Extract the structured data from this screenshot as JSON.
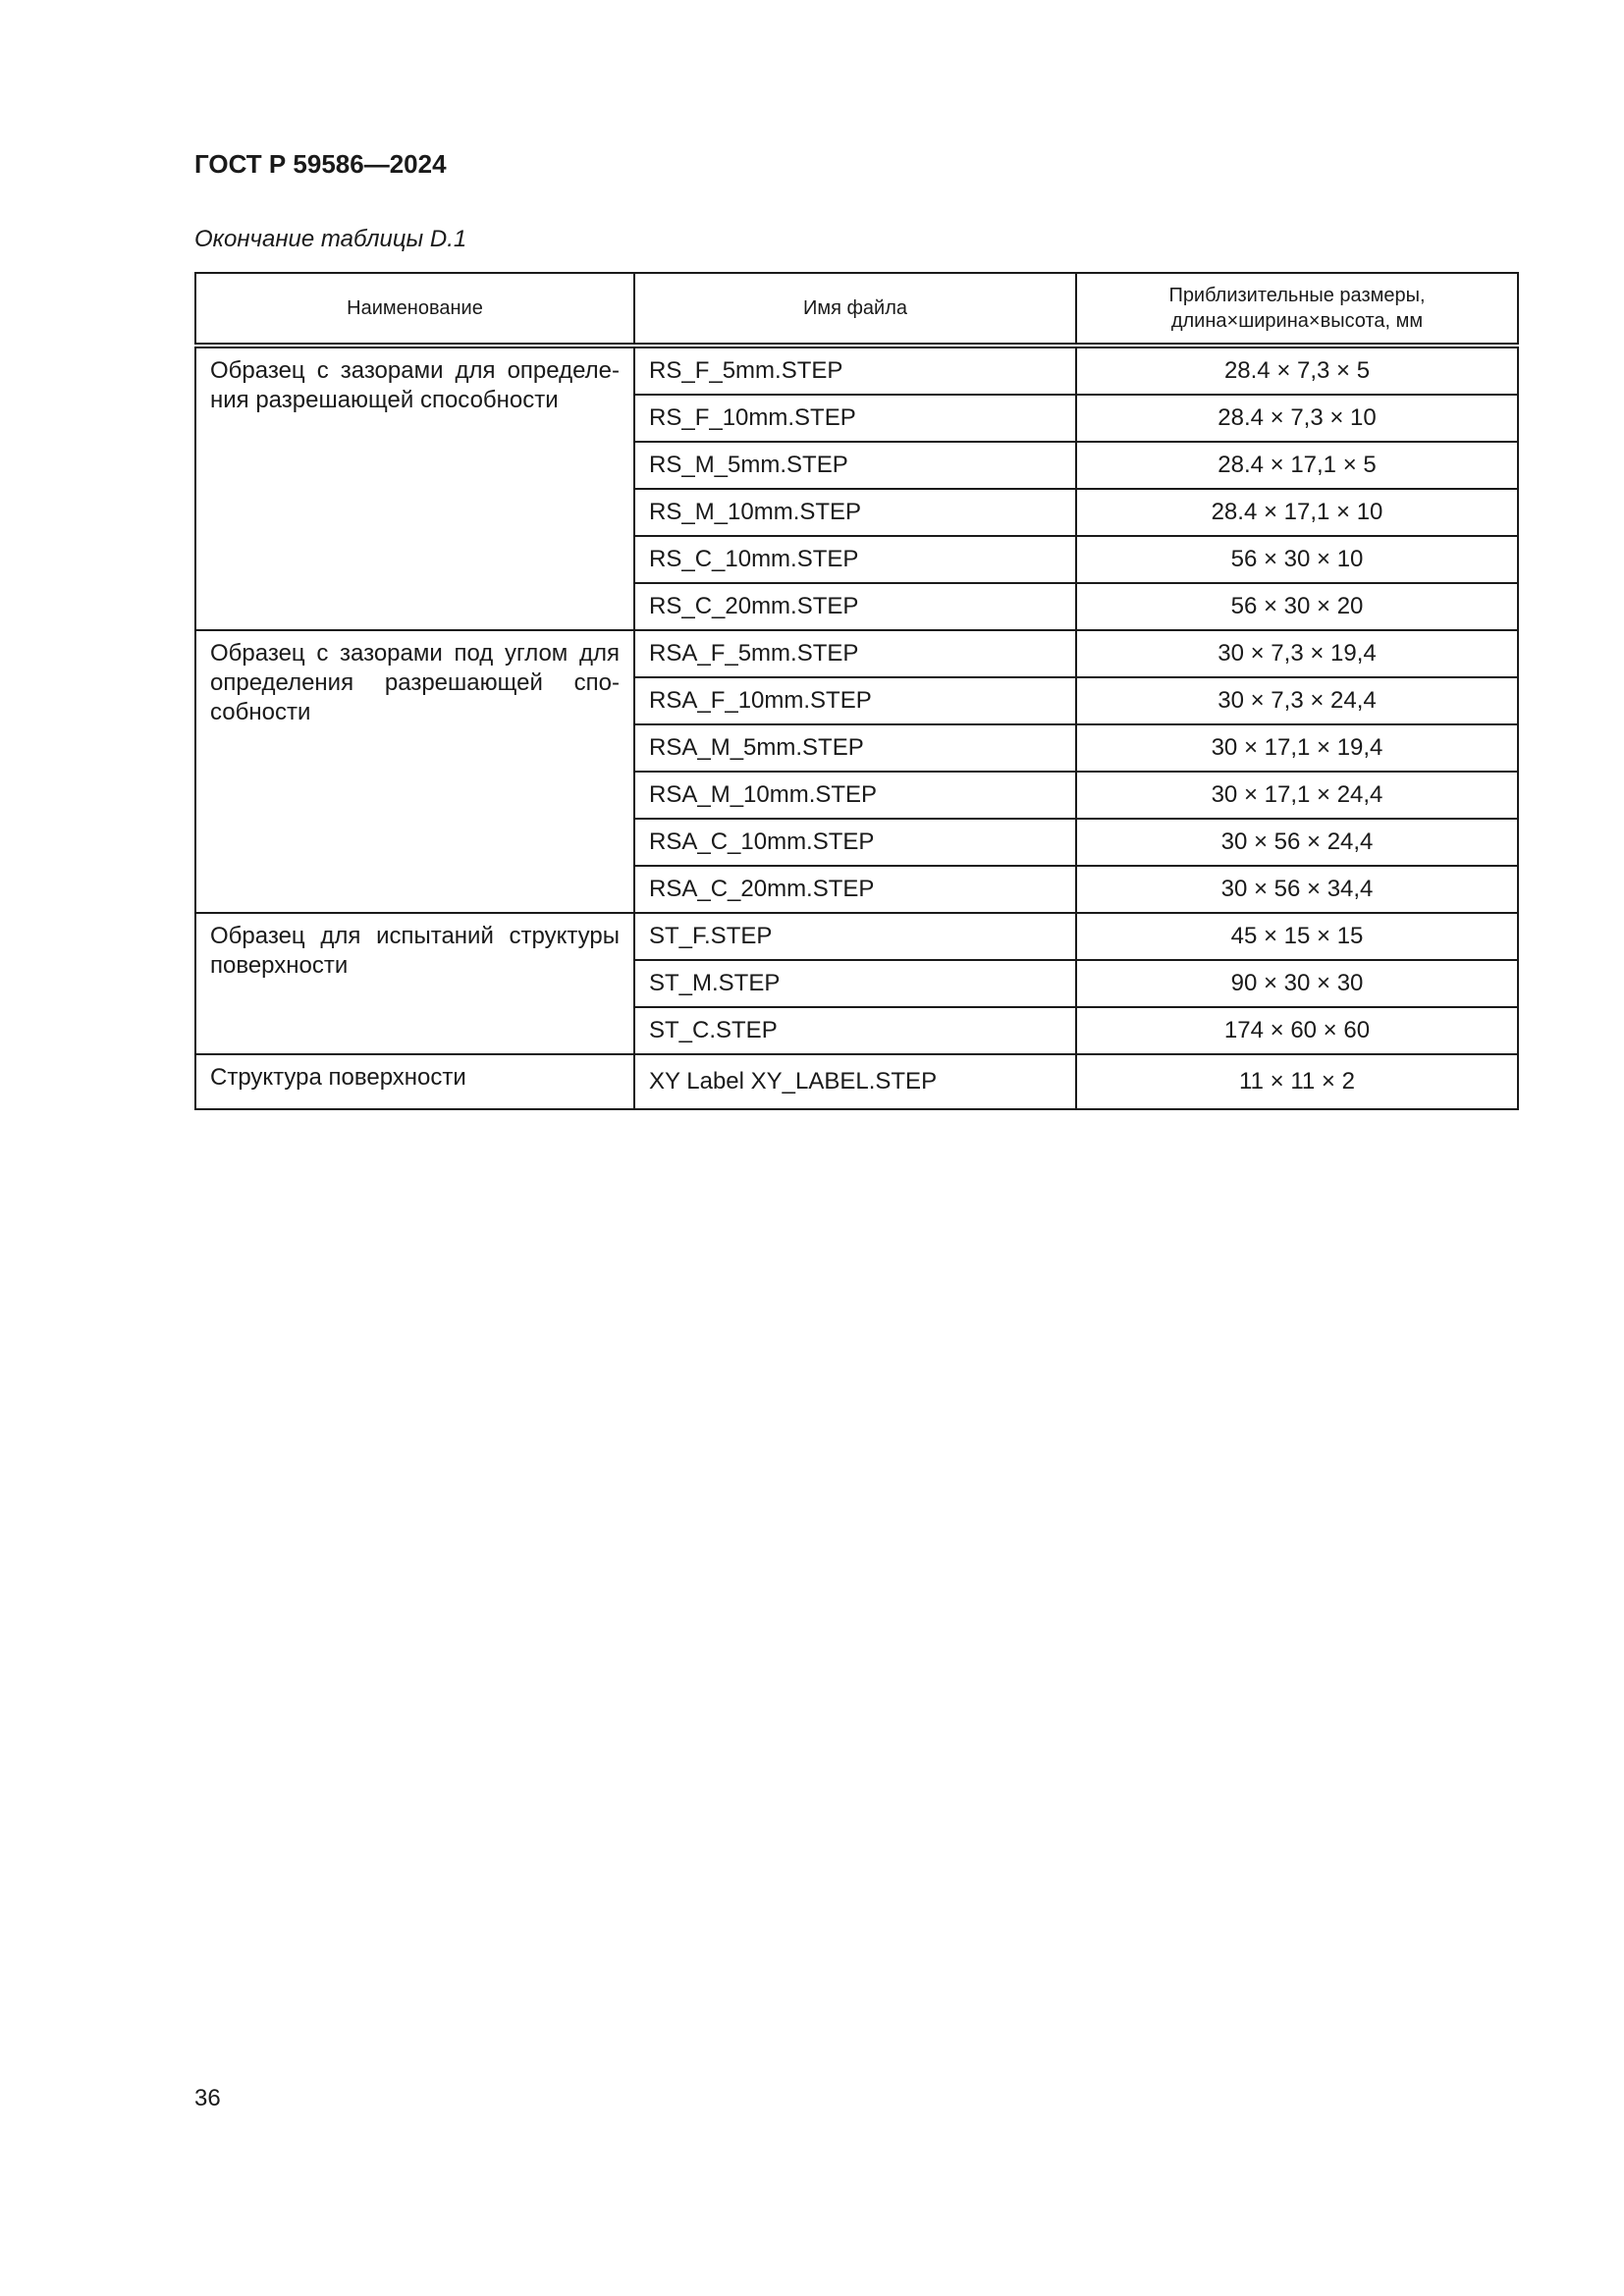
{
  "header": {
    "doc_title": "ГОСТ Р 59586—2024"
  },
  "caption": "Окончание таблицы D.1",
  "table": {
    "columns": [
      "Наименование",
      "Имя файла",
      "Приблизительные размеры,",
      "длина×ширина×высота, мм"
    ],
    "groups": [
      {
        "name": "Образец с зазорами для определе-ния разрешающей способности",
        "rows": [
          {
            "file": "RS_F_5mm.STEP",
            "size": "28.4 × 7,3 × 5"
          },
          {
            "file": "RS_F_10mm.STEP",
            "size": "28.4 × 7,3 × 10"
          },
          {
            "file": "RS_M_5mm.STEP",
            "size": "28.4 × 17,1 × 5"
          },
          {
            "file": "RS_M_10mm.STEP",
            "size": "28.4 × 17,1 × 10"
          },
          {
            "file": "RS_C_10mm.STEP",
            "size": "56 × 30 × 10"
          },
          {
            "file": "RS_C_20mm.STEP",
            "size": "56 × 30 × 20"
          }
        ]
      },
      {
        "name": "Образец с зазорами под углом для определения разрешающей спо-собности",
        "rows": [
          {
            "file": "RSA_F_5mm.STEP",
            "size": "30 × 7,3 × 19,4"
          },
          {
            "file": "RSA_F_10mm.STEP",
            "size": "30 × 7,3 × 24,4"
          },
          {
            "file": "RSA_M_5mm.STEP",
            "size": "30 × 17,1 × 19,4"
          },
          {
            "file": "RSA_M_10mm.STEP",
            "size": "30 × 17,1 × 24,4"
          },
          {
            "file": "RSA_C_10mm.STEP",
            "size": "30 × 56 × 24,4"
          },
          {
            "file": "RSA_C_20mm.STEP",
            "size": "30 × 56 × 34,4"
          }
        ]
      },
      {
        "name": "Образец для испытаний структуры поверхности",
        "rows": [
          {
            "file": "ST_F.STEP",
            "size": "45 × 15 × 15"
          },
          {
            "file": "ST_M.STEP",
            "size": "90 × 30 × 30"
          },
          {
            "file": "ST_C.STEP",
            "size": "174 × 60 × 60"
          }
        ]
      },
      {
        "name": "Структура поверхности",
        "rows": [
          {
            "file": "XY Label XY_LABEL.STEP",
            "size": "11 × 11 × 2"
          }
        ]
      }
    ]
  },
  "page_number": "36"
}
